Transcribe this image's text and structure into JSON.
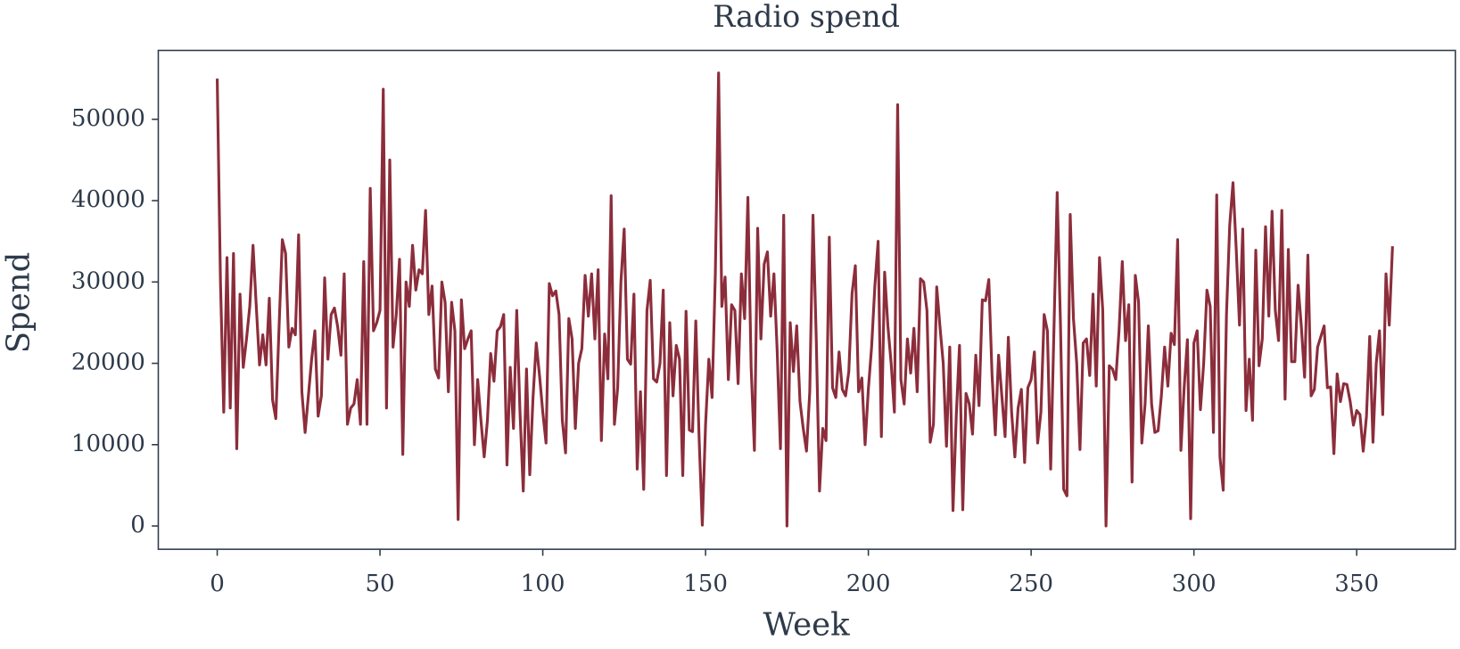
{
  "chart_data": {
    "type": "line",
    "title": "Radio spend",
    "x_label": "Week",
    "y_label": "Spend",
    "color": "#8c2d3b",
    "x": [
      0,
      1,
      2,
      3,
      4,
      5,
      6,
      7,
      8,
      9,
      10,
      11,
      12,
      13,
      14,
      15,
      16,
      17,
      18,
      19,
      20,
      21,
      22,
      23,
      24,
      25,
      26,
      27,
      28,
      29,
      30,
      31,
      32,
      33,
      34,
      35,
      36,
      37,
      38,
      39,
      40,
      41,
      42,
      43,
      44,
      45,
      46,
      47,
      48,
      49,
      50,
      51,
      52,
      53,
      54,
      55,
      56,
      57,
      58,
      59,
      60,
      61,
      62,
      63,
      64,
      65,
      66,
      67,
      68,
      69,
      70,
      71,
      72,
      73,
      74,
      75,
      76,
      77,
      78,
      79,
      80,
      81,
      82,
      83,
      84,
      85,
      86,
      87,
      88,
      89,
      90,
      91,
      92,
      93,
      94,
      95,
      96,
      97,
      98,
      99,
      100,
      101,
      102,
      103,
      104,
      105,
      106,
      107,
      108,
      109,
      110,
      111,
      112,
      113,
      114,
      115,
      116,
      117,
      118,
      119,
      120,
      121,
      122,
      123,
      124,
      125,
      126,
      127,
      128,
      129,
      130,
      131,
      132,
      133,
      134,
      135,
      136,
      137,
      138,
      139,
      140,
      141,
      142,
      143,
      144,
      145,
      146,
      147,
      148,
      149,
      150,
      151,
      152,
      153,
      154,
      155,
      156,
      157,
      158,
      159,
      160,
      161,
      162,
      163,
      164,
      165,
      166,
      167,
      168,
      169,
      170,
      171,
      172,
      173,
      174,
      175,
      176,
      177,
      178,
      179,
      180,
      181,
      182,
      183,
      184,
      185,
      186,
      187,
      188,
      189,
      190,
      191,
      192,
      193,
      194,
      195,
      196,
      197,
      198,
      199,
      200,
      201,
      202,
      203,
      204,
      205,
      206,
      207,
      208,
      209,
      210,
      211,
      212,
      213,
      214,
      215,
      216,
      217,
      218,
      219,
      220,
      221,
      222,
      223,
      224,
      225,
      226,
      227,
      228,
      229,
      230,
      231,
      232,
      233,
      234,
      235,
      236,
      237,
      238,
      239,
      240,
      241,
      242,
      243,
      244,
      245,
      246,
      247,
      248,
      249,
      250,
      251,
      252,
      253,
      254,
      255,
      256,
      257,
      258,
      259,
      260,
      261,
      262,
      263,
      264,
      265,
      266,
      267,
      268,
      269,
      270,
      271,
      272,
      273,
      274,
      275,
      276,
      277,
      278,
      279,
      280,
      281,
      282,
      283,
      284,
      285,
      286,
      287,
      288,
      289,
      290,
      291,
      292,
      293,
      294,
      295,
      296,
      297,
      298,
      299,
      300,
      301,
      302,
      303,
      304,
      305,
      306,
      307,
      308,
      309,
      310,
      311,
      312,
      313,
      314,
      315,
      316,
      317,
      318,
      319,
      320,
      321,
      322,
      323,
      324,
      325,
      326,
      327,
      328,
      329,
      330,
      331,
      332,
      333,
      334,
      335,
      336,
      337,
      338,
      339,
      340,
      341,
      342,
      343,
      344,
      345,
      346,
      347,
      348,
      349,
      350,
      351,
      352,
      353,
      354,
      355,
      356,
      357,
      358,
      359,
      360,
      361
    ],
    "values": [
      55000,
      30000,
      14000,
      33000,
      14500,
      33500,
      9500,
      28500,
      19500,
      23000,
      27000,
      34500,
      27000,
      19800,
      23500,
      19800,
      28000,
      15500,
      13200,
      24500,
      35200,
      33500,
      22000,
      24300,
      23500,
      35800,
      16500,
      11500,
      16000,
      20500,
      24000,
      13500,
      16000,
      30500,
      20500,
      26000,
      26800,
      24500,
      21000,
      31000,
      12500,
      14500,
      15000,
      18000,
      12500,
      32500,
      12500,
      41500,
      24000,
      25000,
      26500,
      53700,
      14500,
      45000,
      22000,
      26000,
      32800,
      8800,
      30000,
      27000,
      34500,
      29000,
      31500,
      31000,
      38800,
      26000,
      29500,
      19300,
      18200,
      30000,
      27500,
      16500,
      27500,
      24000,
      800,
      27800,
      21800,
      23000,
      24000,
      10000,
      18000,
      13000,
      8500,
      13000,
      21200,
      17800,
      24000,
      24500,
      26000,
      7500,
      19500,
      12000,
      26500,
      14000,
      4300,
      19300,
      6300,
      15800,
      22500,
      18500,
      14000,
      10200,
      29800,
      28300,
      28900,
      26000,
      13000,
      9000,
      25500,
      23000,
      12000,
      20000,
      21800,
      30800,
      25800,
      31000,
      23000,
      31500,
      10500,
      23600,
      18100,
      40600,
      12500,
      17000,
      30000,
      36500,
      20500,
      19900,
      28500,
      7000,
      16500,
      4500,
      26500,
      30200,
      18100,
      17700,
      20000,
      29000,
      6200,
      25000,
      16000,
      22200,
      20500,
      6200,
      26400,
      11800,
      11600,
      25200,
      11000,
      100,
      12500,
      20500,
      15800,
      31000,
      55700,
      27000,
      30600,
      18000,
      27200,
      26500,
      17500,
      31000,
      25500,
      40400,
      19500,
      9300,
      36600,
      23000,
      32200,
      33700,
      25800,
      31000,
      21500,
      9500,
      38200,
      0,
      25000,
      19000,
      24600,
      15300,
      12000,
      9200,
      16500,
      38200,
      23000,
      4300,
      12000,
      10500,
      35500,
      17000,
      15800,
      21400,
      16800,
      16000,
      19000,
      28600,
      32000,
      16500,
      18200,
      10000,
      16800,
      22000,
      29500,
      35000,
      11000,
      31200,
      24600,
      20000,
      14000,
      51800,
      18000,
      15000,
      23000,
      18800,
      24300,
      16500,
      30400,
      30000,
      26500,
      10300,
      12500,
      29400,
      24500,
      20000,
      9800,
      22000,
      1900,
      13500,
      22200,
      2000,
      16300,
      15000,
      11300,
      21000,
      14800,
      27800,
      27700,
      30300,
      18500,
      11200,
      21000,
      16000,
      11000,
      23200,
      14000,
      8500,
      14500,
      16800,
      7800,
      17000,
      18000,
      21400,
      10200,
      14000,
      26000,
      24000,
      7000,
      24000,
      41000,
      25000,
      4500,
      3700,
      38300,
      25500,
      20000,
      9400,
      22500,
      23000,
      18500,
      28500,
      17200,
      33000,
      26500,
      0,
      19700,
      19300,
      18000,
      24000,
      32500,
      22800,
      27200,
      5400,
      30800,
      27500,
      10200,
      15000,
      24600,
      15000,
      11500,
      11700,
      16000,
      22000,
      17200,
      23700,
      22300,
      35200,
      9300,
      17000,
      22900,
      900,
      22500,
      24000,
      14300,
      20000,
      29000,
      27000,
      11500,
      40700,
      8500,
      4400,
      26000,
      37000,
      42200,
      34000,
      24700,
      36500,
      14200,
      20500,
      13000,
      33900,
      19700,
      23000,
      36800,
      25800,
      38700,
      26500,
      22800,
      38800,
      15600,
      34000,
      20200,
      20200,
      29600,
      24500,
      18300,
      33300,
      16000,
      16800,
      22000,
      23300,
      24600,
      17000,
      17100,
      8900,
      18700,
      15300,
      17500,
      17400,
      15300,
      12400,
      14200,
      13700,
      9200,
      13500,
      23300,
      10300,
      20000,
      24000,
      13700,
      31000,
      24700,
      34400
    ],
    "xlim": [
      -18.1,
      380.3
    ],
    "ylim": [
      -2860,
      58470
    ],
    "xticks": [
      0,
      50,
      100,
      150,
      200,
      250,
      300,
      350
    ],
    "yticks": [
      0,
      10000,
      20000,
      30000,
      40000,
      50000
    ]
  }
}
